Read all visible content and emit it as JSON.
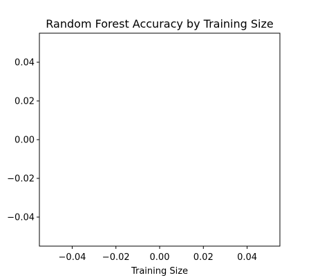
{
  "chart_data": {
    "type": "scatter",
    "title": "Random Forest Accuracy by Training Size",
    "xlabel": "Training Size",
    "ylabel": "",
    "x": [],
    "y": [],
    "series": [],
    "xlim": [
      -0.055,
      0.055
    ],
    "ylim": [
      -0.055,
      0.055
    ],
    "xticks": [
      -0.04,
      -0.02,
      0.0,
      0.02,
      0.04
    ],
    "xtick_labels": [
      "−0.04",
      "−0.02",
      "0.00",
      "0.02",
      "0.04"
    ],
    "yticks": [
      -0.04,
      -0.02,
      0.0,
      0.02,
      0.04
    ],
    "ytick_labels": [
      "−0.04",
      "−0.02",
      "0.00",
      "0.02",
      "0.04"
    ],
    "grid": false,
    "legend": "none"
  }
}
